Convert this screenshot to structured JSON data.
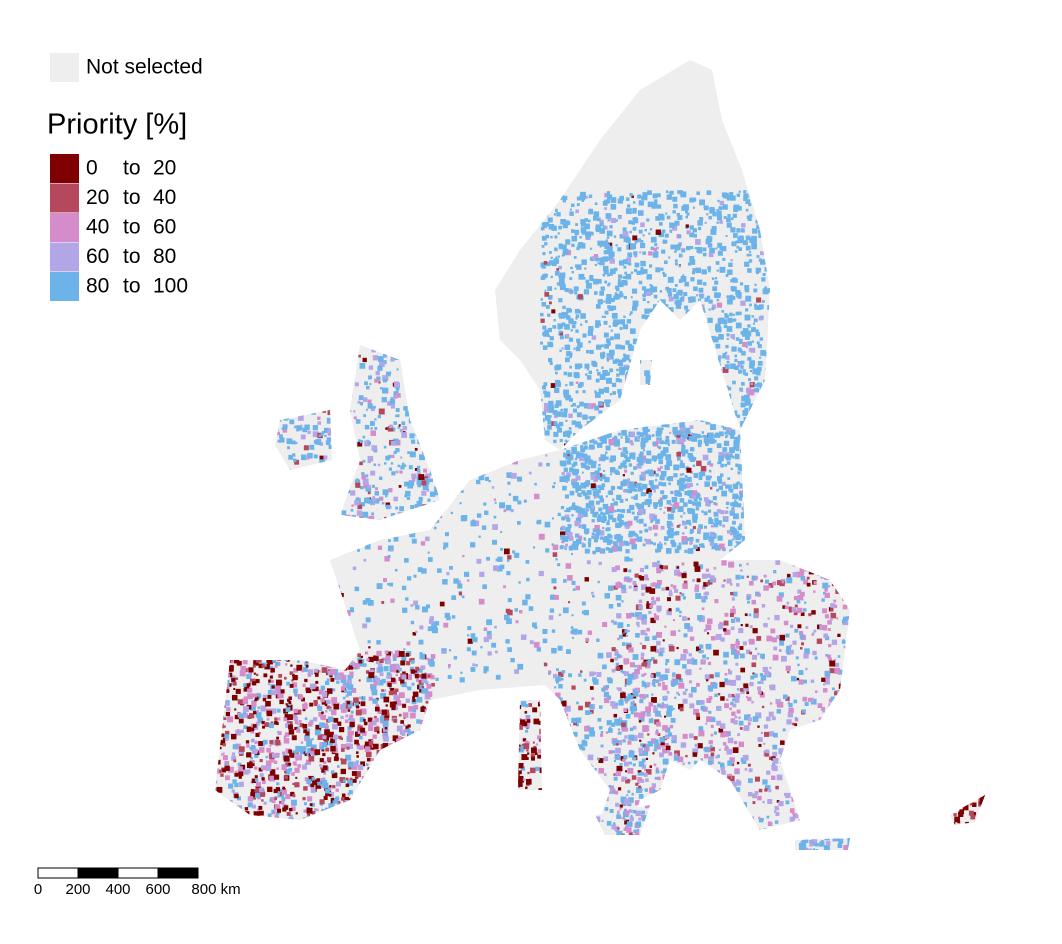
{
  "legend": {
    "not_selected": {
      "label": "Not selected",
      "color": "#eeeeee"
    },
    "title": "Priority [%]",
    "classes": [
      {
        "from": 0,
        "word": "to",
        "to": 20,
        "color": "#7f0000"
      },
      {
        "from": 20,
        "word": "to",
        "to": 40,
        "color": "#b5485d"
      },
      {
        "from": 40,
        "word": "to",
        "to": 60,
        "color": "#d58ccb"
      },
      {
        "from": 60,
        "word": "to",
        "to": 80,
        "color": "#b3a6e6"
      },
      {
        "from": 80,
        "word": "to",
        "to": 100,
        "color": "#6bb3e8"
      }
    ]
  },
  "scale_bar": {
    "labels": [
      "0",
      "200",
      "400",
      "600",
      "800 km"
    ]
  }
}
